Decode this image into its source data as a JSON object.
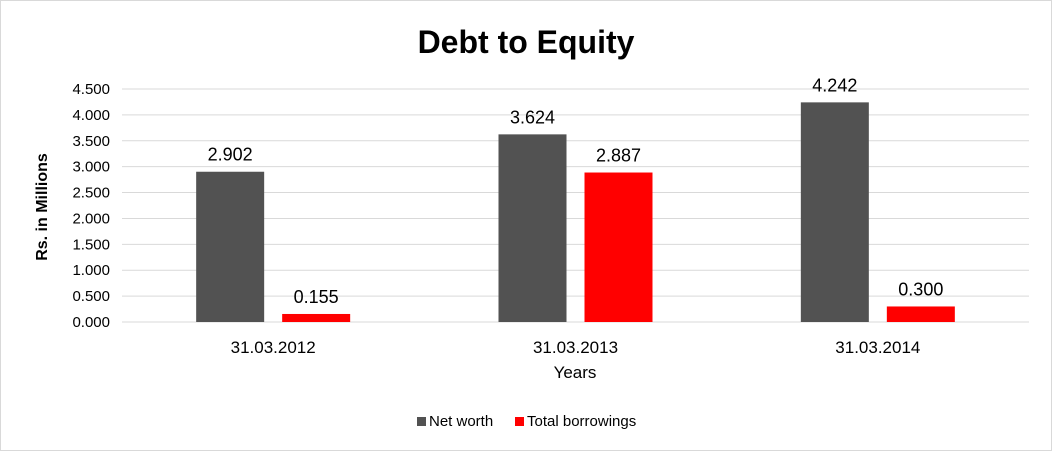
{
  "chart_data": {
    "type": "bar",
    "title": "Debt to Equity",
    "xlabel": "Years",
    "ylabel": "Rs. in Millions",
    "categories": [
      "31.03.2012",
      "31.03.2013",
      "31.03.2014"
    ],
    "series": [
      {
        "name": "Net worth",
        "values": [
          2.902,
          3.624,
          4.242
        ],
        "labels": [
          "2.902",
          "3.624",
          "4.242"
        ],
        "color": "#525252"
      },
      {
        "name": "Total borrowings",
        "values": [
          0.155,
          2.887,
          0.3
        ],
        "labels": [
          "0.155",
          "2.887",
          "0.300"
        ],
        "color": "#ff0000"
      }
    ],
    "ylim": [
      0,
      4.5
    ],
    "yticks": [
      "0.000",
      "0.500",
      "1.000",
      "1.500",
      "2.000",
      "2.500",
      "3.000",
      "3.500",
      "4.000",
      "4.500"
    ],
    "ytick_values": [
      0,
      0.5,
      1,
      1.5,
      2,
      2.5,
      3,
      3.5,
      4,
      4.5
    ],
    "grid": true,
    "gridline_color": "#d9d9d9",
    "legend_position": "bottom"
  }
}
